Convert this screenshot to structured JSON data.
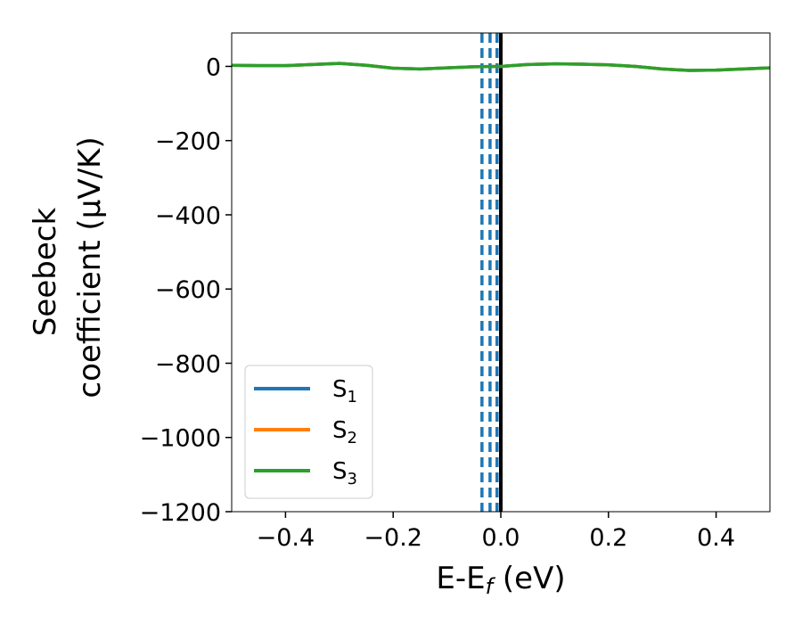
{
  "chart_data": {
    "type": "line",
    "xlabel": "E-E",
    "xlabel_sub": "f",
    "xlabel_unit": " (eV)",
    "ylabel_line1": "Seebeck",
    "ylabel_line2": "coefficient  (μV/K)",
    "xlim": [
      -0.5,
      0.5
    ],
    "ylim": [
      -1200,
      90
    ],
    "xticks": [
      -0.4,
      -0.2,
      0.0,
      0.2,
      0.4
    ],
    "xtick_labels": [
      "−0.4",
      "−0.2",
      "0.0",
      "0.2",
      "0.4"
    ],
    "yticks": [
      0,
      -200,
      -400,
      -600,
      -800,
      -1000,
      -1200
    ],
    "ytick_labels": [
      "0",
      "−200",
      "−400",
      "−600",
      "−800",
      "−1000",
      "−1200"
    ],
    "grid": false,
    "legend_position": "lower-left",
    "x": [
      -0.5,
      -0.45,
      -0.4,
      -0.35,
      -0.3,
      -0.25,
      -0.2,
      -0.15,
      -0.1,
      -0.05,
      0.0,
      0.05,
      0.1,
      0.15,
      0.2,
      0.25,
      0.3,
      0.35,
      0.4,
      0.45,
      0.5
    ],
    "series": [
      {
        "name": "S",
        "name_sub": "1",
        "color": "#1f77b4",
        "values": [
          3,
          2,
          2,
          5,
          8,
          3,
          -5,
          -7,
          -4,
          -1,
          0,
          5,
          7,
          6,
          4,
          0,
          -7,
          -11,
          -10,
          -7,
          -4
        ]
      },
      {
        "name": "S",
        "name_sub": "2",
        "color": "#ff7f0e",
        "values": [
          3,
          2,
          2,
          5,
          8,
          3,
          -5,
          -7,
          -4,
          -1,
          0,
          5,
          7,
          6,
          4,
          0,
          -7,
          -11,
          -10,
          -7,
          -4
        ]
      },
      {
        "name": "S",
        "name_sub": "3",
        "color": "#2ca02c",
        "values": [
          3,
          2,
          2,
          5,
          8,
          3,
          -5,
          -7,
          -4,
          -1,
          0,
          5,
          7,
          6,
          4,
          0,
          -7,
          -11,
          -10,
          -7,
          -4
        ]
      }
    ],
    "vlines": [
      {
        "x": -0.035,
        "style": "dashed",
        "color": "#1f77b4"
      },
      {
        "x": -0.02,
        "style": "dashed",
        "color": "#1f77b4"
      },
      {
        "x": -0.007,
        "style": "dashed",
        "color": "#1f77b4"
      },
      {
        "x": 0.0,
        "style": "solid",
        "color": "#000000"
      }
    ]
  }
}
